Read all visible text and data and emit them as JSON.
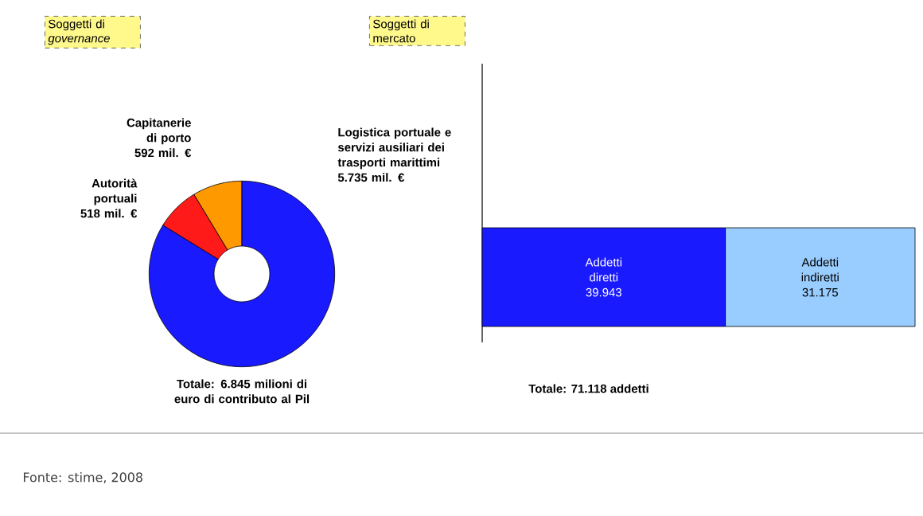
{
  "chart_data": [
    {
      "type": "donut",
      "title": "Soggetti di *governance*",
      "categories": [
        "Autorità portuali",
        "Capitanerie di porto",
        "Logistica portuale e servizi ausiliari dei trasporti marittimi"
      ],
      "values": [
        518,
        592,
        5735
      ],
      "value_labels": [
        "518 mil. €",
        "592 mil. €",
        "5.735 mil. €"
      ],
      "colors": [
        "#ff1a1a",
        "#ff9900",
        "#1a1aff"
      ],
      "annotations": [
        "Totale: 6.845 milioni di euro di contributo al Pil",
        "Fonte: stime, 2008"
      ]
    },
    {
      "type": "bar",
      "title": "Soggetti di mercato",
      "orientation": "horizontal",
      "stacked": true,
      "categories": [
        null
      ],
      "series": [
        {
          "name": "Addetti diretti",
          "color": "#1a1aff",
          "values": [
            39943
          ],
          "value_labels": [
            "39.943"
          ]
        },
        {
          "name": "Addetti indiretti",
          "color": "#99ccff",
          "values": [
            31175
          ],
          "value_labels": [
            "31.175"
          ]
        }
      ],
      "annotations": [
        "Totale: 71.118 addetti"
      ]
    }
  ]
}
